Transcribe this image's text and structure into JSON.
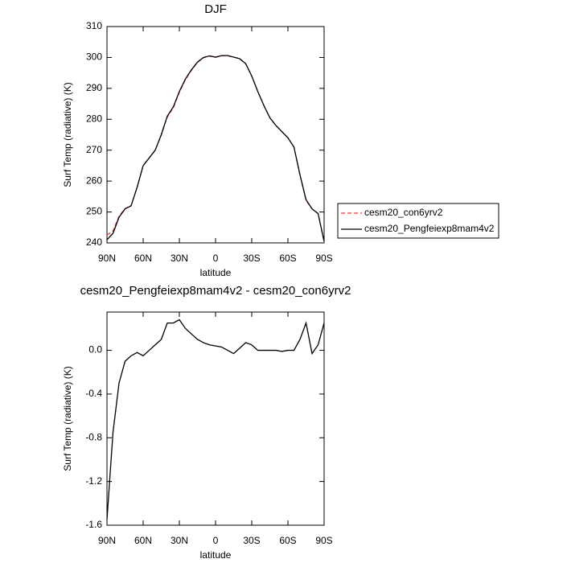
{
  "chart_data": [
    {
      "type": "line",
      "title": "DJF",
      "ylabel": "Surf Temp (radiative) (K)",
      "xlabel": "latitude",
      "x": [
        90,
        85,
        80,
        75,
        70,
        65,
        60,
        55,
        50,
        45,
        40,
        35,
        30,
        25,
        20,
        15,
        10,
        5,
        0,
        -5,
        -10,
        -15,
        -20,
        -25,
        -30,
        -35,
        -40,
        -45,
        -50,
        -55,
        -60,
        -65,
        -70,
        -75,
        -80,
        -85,
        -90
      ],
      "xlim": [
        90,
        -90
      ],
      "xticks": [
        {
          "value": 90,
          "label": "90N"
        },
        {
          "value": 60,
          "label": "60N"
        },
        {
          "value": 30,
          "label": "30N"
        },
        0,
        {
          "value": -30,
          "label": "30S"
        },
        {
          "value": -60,
          "label": "60S"
        },
        {
          "value": -90,
          "label": "90S"
        }
      ],
      "ylim": [
        240,
        310
      ],
      "yticks": [
        240,
        250,
        260,
        270,
        280,
        290,
        300,
        310
      ],
      "legend": "outside-right",
      "series": [
        {
          "name": "cesm20_con6yrv2",
          "color": "#ff3030",
          "dashed": true,
          "values": [
            242.55,
            243.85,
            248.6,
            251.1,
            252.05,
            258.02,
            265.05,
            267.5,
            269.95,
            274.9,
            280.75,
            283.75,
            288.72,
            292.8,
            295.85,
            298.4,
            299.93,
            300.45,
            300.06,
            300.57,
            300.6,
            300.13,
            299.58,
            297.93,
            293.95,
            289,
            284.5,
            280.5,
            278,
            276.01,
            274,
            271,
            261.9,
            253.75,
            251.03,
            249.45,
            240.25
          ]
        },
        {
          "name": "cesm20_Pengfeiexp8mam4v2",
          "color": "#000000",
          "dashed": false,
          "values": [
            241,
            243.1,
            248.3,
            251,
            252,
            258,
            265,
            267.5,
            270,
            275,
            281,
            284,
            289,
            293,
            296,
            298.5,
            300,
            300.5,
            300.1,
            300.6,
            300.6,
            300.1,
            299.6,
            298,
            294,
            289,
            284.5,
            280.5,
            278,
            276,
            274,
            271,
            262,
            254,
            251,
            249.5,
            240.5
          ]
        }
      ]
    },
    {
      "type": "line",
      "title": "cesm20_Pengfeiexp8mam4v2 - cesm20_con6yrv2",
      "ylabel": "Surf Temp (radiative) (K)",
      "xlabel": "latitude",
      "x": [
        90,
        85,
        80,
        75,
        70,
        65,
        60,
        55,
        50,
        45,
        40,
        35,
        30,
        25,
        20,
        15,
        10,
        5,
        0,
        -5,
        -10,
        -15,
        -20,
        -25,
        -30,
        -35,
        -40,
        -45,
        -50,
        -55,
        -60,
        -65,
        -70,
        -75,
        -80,
        -85,
        -90
      ],
      "xlim": [
        90,
        -90
      ],
      "xticks": [
        {
          "value": 90,
          "label": "90N"
        },
        {
          "value": 60,
          "label": "60N"
        },
        {
          "value": 30,
          "label": "30N"
        },
        0,
        {
          "value": -30,
          "label": "30S"
        },
        {
          "value": -60,
          "label": "60S"
        },
        {
          "value": -90,
          "label": "90S"
        }
      ],
      "ylim": [
        -1.6,
        0.35
      ],
      "yticks": [
        -1.6,
        -1.2,
        -0.8,
        -0.4,
        {
          "value": 0,
          "label": "0.0"
        }
      ],
      "series": [
        {
          "color": "#000000",
          "dashed": false,
          "values": [
            -1.55,
            -0.75,
            -0.3,
            -0.1,
            -0.05,
            -0.02,
            -0.05,
            0,
            0.05,
            0.1,
            0.25,
            0.25,
            0.28,
            0.2,
            0.15,
            0.1,
            0.07,
            0.05,
            0.04,
            0.03,
            0,
            -0.03,
            0.02,
            0.07,
            0.05,
            0,
            0,
            0,
            0,
            -0.01,
            0,
            0,
            0.1,
            0.25,
            -0.03,
            0.05,
            0.25
          ]
        }
      ]
    }
  ]
}
